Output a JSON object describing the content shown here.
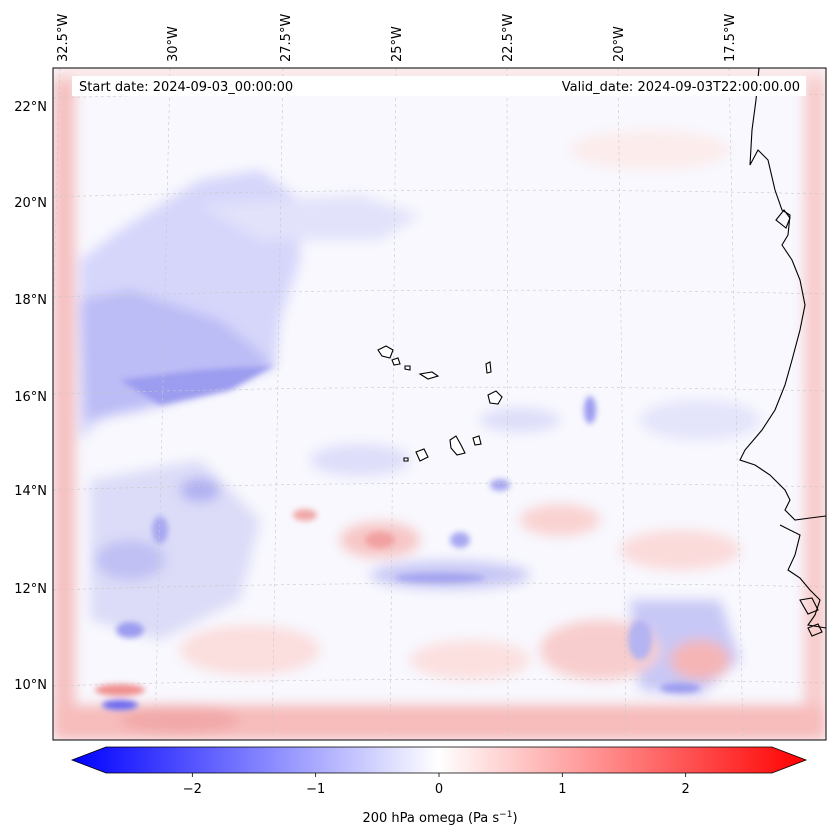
{
  "map": {
    "start_date": "Start date: 2024-09-03_00:00:00",
    "valid_date": "Valid_date: 2024-09-03T22:00:00.00",
    "lon_labels": [
      "32.5°W",
      "30°W",
      "27.5°W",
      "25°W",
      "22.5°W",
      "20°W",
      "17.5°W"
    ],
    "lat_labels": [
      "22°N",
      "20°N",
      "18°N",
      "16°N",
      "14°N",
      "12°N",
      "10°N"
    ],
    "features": [
      "Cape Verde islands",
      "West African coastline"
    ]
  },
  "colorbar": {
    "label": "200 hPa omega (Pa s",
    "label_sup": "−1",
    "label_close": ")",
    "ticks": [
      "−2",
      "−1",
      "0",
      "1",
      "2"
    ],
    "tick_values": [
      -2,
      -1,
      0,
      1,
      2
    ],
    "range": [
      -2.7,
      2.7
    ],
    "colors": {
      "negative": "#0000ff",
      "zero": "#ffffff",
      "positive": "#ff0000"
    }
  }
}
